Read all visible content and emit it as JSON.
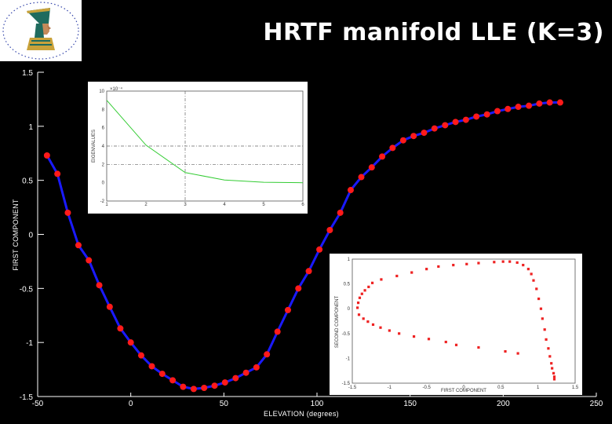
{
  "title": "HRTF manifold LLE (K=3)",
  "colors": {
    "background": "#000000",
    "line": "#1a1aff",
    "marker": "#ff1a1a",
    "inset_line": "#33cc33",
    "inset_marker": "#ee2222"
  },
  "logo": {
    "icon": "nefertiti-bust-icon"
  },
  "chart_data": [
    {
      "type": "line",
      "xlabel": "ELEVATION (degrees)",
      "ylabel": "FIRST COMPONENT",
      "xlim": [
        -50,
        250
      ],
      "ylim": [
        -1.5,
        1.5
      ],
      "xticks": [
        -50,
        0,
        50,
        100,
        150,
        200,
        250
      ],
      "yticks": [
        -1.5,
        -1,
        -0.5,
        0,
        0.5,
        1,
        1.5
      ],
      "ytick_labels": [
        "-1.5",
        "-1",
        "-0.5",
        "0",
        "0.5",
        "1",
        "1.5"
      ],
      "xtick_labels": [
        "-50",
        "0",
        "50",
        "100",
        "150",
        "200",
        "250"
      ],
      "grid": false,
      "series": [
        {
          "x": [
            -45,
            -39.4,
            -33.8,
            -28.1,
            -22.5,
            -16.9,
            -11.3,
            -5.6,
            0,
            5.6,
            11.3,
            16.9,
            22.5,
            28.1,
            33.8,
            39.4,
            45,
            50.6,
            56.3,
            61.9,
            67.5,
            73.1,
            78.8,
            84.4,
            90,
            95.6,
            101.3,
            106.9,
            112.5,
            118.1,
            123.8,
            129.4,
            135,
            140.6,
            146.3,
            151.9,
            157.5,
            163.1,
            168.8,
            174.4,
            180,
            185.6,
            191.3,
            196.9,
            202.5,
            208.1,
            213.8,
            219.4,
            225,
            230.6
          ],
          "y": [
            0.73,
            0.56,
            0.2,
            -0.1,
            -0.24,
            -0.47,
            -0.67,
            -0.87,
            -1.0,
            -1.12,
            -1.22,
            -1.29,
            -1.35,
            -1.41,
            -1.43,
            -1.42,
            -1.4,
            -1.37,
            -1.33,
            -1.28,
            -1.23,
            -1.11,
            -0.9,
            -0.7,
            -0.5,
            -0.34,
            -0.14,
            0.04,
            0.2,
            0.41,
            0.53,
            0.62,
            0.72,
            0.8,
            0.87,
            0.91,
            0.94,
            0.98,
            1.01,
            1.04,
            1.06,
            1.09,
            1.11,
            1.14,
            1.16,
            1.18,
            1.19,
            1.21,
            1.22,
            1.22
          ]
        }
      ]
    },
    {
      "type": "line",
      "ylabel": "EIGENVALUES",
      "y_multiplier": "×10⁻⁴",
      "xlim": [
        1,
        6
      ],
      "ylim": [
        -2,
        10
      ],
      "xticks": [
        1,
        2,
        3,
        4,
        5,
        6
      ],
      "xtick_labels": [
        "1",
        "2",
        "3",
        "4",
        "5",
        "6"
      ],
      "yticks": [
        -2,
        0,
        2,
        4,
        6,
        8,
        10
      ],
      "ytick_labels": [
        "-2",
        "0",
        "2",
        "4",
        "6",
        "8",
        "10"
      ],
      "grid": true,
      "series": [
        {
          "x": [
            1,
            2,
            3,
            4,
            5,
            6
          ],
          "y": [
            9.0,
            4.1,
            1.1,
            0.3,
            0.05,
            0.0
          ]
        }
      ]
    },
    {
      "type": "scatter",
      "xlabel": "FIRST COMPONENT",
      "ylabel": "SECOND COMPONENT",
      "xlim": [
        -1.5,
        1.5
      ],
      "ylim": [
        -1.5,
        1
      ],
      "xticks": [
        -1.5,
        -1,
        -0.5,
        0,
        0.5,
        1,
        1.5
      ],
      "xtick_labels": [
        "-1.5",
        "-1",
        "-0.5",
        "0",
        "0.5",
        "1",
        "1.5"
      ],
      "yticks": [
        -1.5,
        -1,
        -0.5,
        0,
        0.5,
        1
      ],
      "ytick_labels": [
        "-1.5",
        "-1",
        "-0.5",
        "0",
        "0.5",
        "1"
      ],
      "series": [
        {
          "x": [
            0.73,
            0.56,
            0.2,
            -0.1,
            -0.24,
            -0.47,
            -0.67,
            -0.87,
            -1.0,
            -1.12,
            -1.22,
            -1.29,
            -1.35,
            -1.41,
            -1.43,
            -1.42,
            -1.4,
            -1.37,
            -1.33,
            -1.28,
            -1.23,
            -1.11,
            -0.9,
            -0.7,
            -0.5,
            -0.34,
            -0.14,
            0.04,
            0.2,
            0.41,
            0.53,
            0.62,
            0.72,
            0.8,
            0.87,
            0.91,
            0.94,
            0.98,
            1.01,
            1.04,
            1.06,
            1.09,
            1.11,
            1.14,
            1.16,
            1.18,
            1.19,
            1.21,
            1.22,
            1.22
          ],
          "y": [
            -0.9,
            -0.86,
            -0.78,
            -0.73,
            -0.67,
            -0.61,
            -0.56,
            -0.5,
            -0.44,
            -0.38,
            -0.32,
            -0.26,
            -0.2,
            -0.12,
            0.02,
            0.12,
            0.22,
            0.3,
            0.37,
            0.44,
            0.52,
            0.59,
            0.66,
            0.73,
            0.8,
            0.85,
            0.88,
            0.9,
            0.92,
            0.94,
            0.95,
            0.95,
            0.93,
            0.88,
            0.8,
            0.7,
            0.57,
            0.4,
            0.2,
            0.0,
            -0.2,
            -0.42,
            -0.62,
            -0.8,
            -0.96,
            -1.1,
            -1.2,
            -1.3,
            -1.37,
            -1.42
          ]
        }
      ]
    }
  ]
}
